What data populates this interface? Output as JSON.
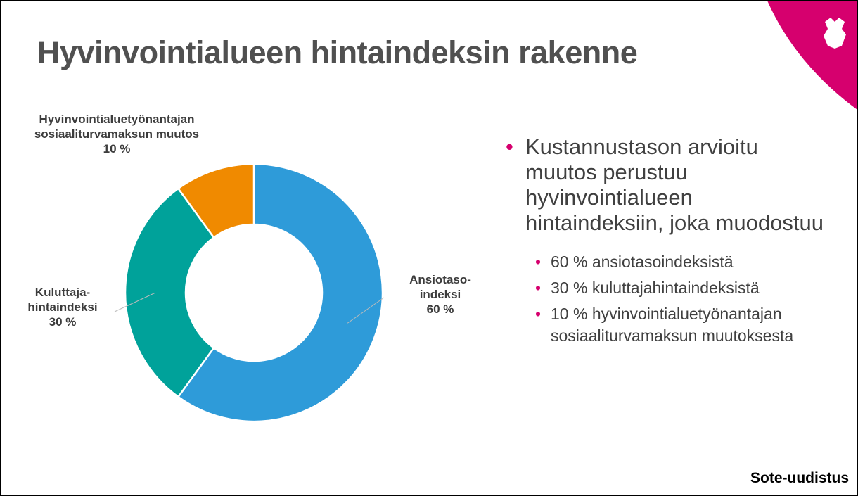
{
  "chart_data": {
    "type": "donut",
    "title": "Hyvinvointialueen hintaindeksin rakenne",
    "categories": [
      "Ansiotaso-indeksi",
      "Kuluttaja-hintaindeksi",
      "Hyvinvointialuetyönantajan sosiaaliturvamaksun muutos"
    ],
    "values": [
      60,
      30,
      10
    ],
    "value_labels": [
      "60 %",
      "30 %",
      "10 %"
    ],
    "colors": [
      "#2e9bd9",
      "#00a29a",
      "#f08a00"
    ]
  },
  "bullet": {
    "lines": [
      "Kustannustason arvioitu",
      "muutos perustuu",
      "hyvinvointialueen",
      "hintaindeksiin, joka muodostuu"
    ],
    "sub_bullets": [
      "60 % ansiotasoindeksistä",
      "30 % kuluttajahintaindeksistä",
      "10 % hyvinvointialuetyönantajan sosiaaliturvamaksun muutoksesta"
    ]
  },
  "footer": "Sote-uudistus"
}
